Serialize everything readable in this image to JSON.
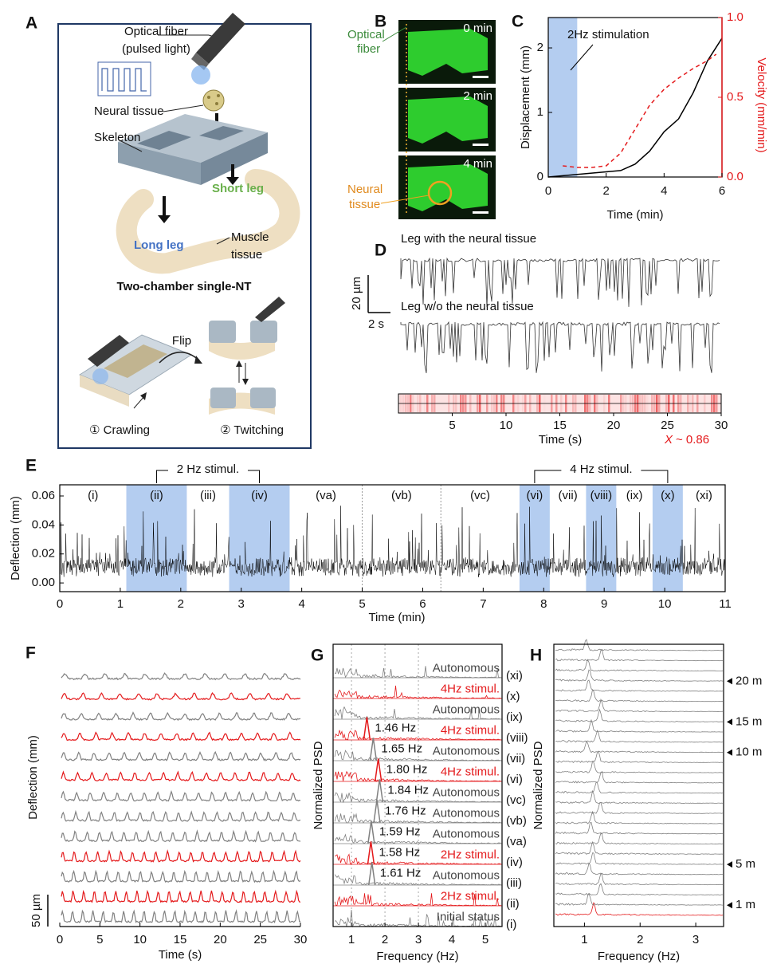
{
  "panel_a": {
    "label": "A",
    "optical_fiber": "Optical fiber",
    "pulsed_light": "(pulsed light)",
    "neural_tissue": "Neural tissue",
    "skeleton": "Skeleton",
    "short_leg": "Short leg",
    "long_leg": "Long leg",
    "muscle": "Muscle",
    "tissue": "tissue",
    "caption": "Two-chamber single-NT",
    "flip": "Flip",
    "crawling": "① Crawling",
    "twitching": "② Twitching"
  },
  "panel_b": {
    "label": "B",
    "times": [
      "0 min",
      "2 min",
      "4 min"
    ],
    "optical": "Optical",
    "fiber": "fiber",
    "neural": "Neural",
    "tissue": "tissue"
  },
  "chart_data": [
    {
      "type": "line",
      "panel": "C",
      "xlabel": "Time (min)",
      "ylabel": "Displacement (mm)",
      "y2label": "Velocity (mm/min)",
      "annotation": "2Hz stimulation",
      "xlim": [
        0,
        6
      ],
      "xticks": [
        0,
        2,
        4,
        6
      ],
      "ylim": [
        0,
        2.47
      ],
      "yticks": [
        0,
        1,
        2
      ],
      "y2lim": [
        0,
        1
      ],
      "y2ticks": [
        {
          "value": 0,
          "label": "0.0"
        },
        {
          "value": 0.5,
          "label": "0.5"
        },
        {
          "value": 1,
          "label": "1.0"
        }
      ],
      "stimulation": [
        0,
        1
      ],
      "stimulation_color": "#b4cdf0",
      "series": [
        {
          "color": "#000000",
          "x": [
            0,
            0.5,
            1,
            1.5,
            2,
            2.5,
            3,
            3.5,
            4,
            4.5,
            5,
            5.5,
            6
          ],
          "values": [
            0,
            0.02,
            0.04,
            0.06,
            0.08,
            0.1,
            0.2,
            0.4,
            0.7,
            0.9,
            1.3,
            1.8,
            2.15
          ]
        },
        {
          "color": "#e41a1c",
          "dashed": true,
          "axis": "y2",
          "x": [
            0.5,
            1,
            1.5,
            2,
            2.5,
            3,
            3.5,
            4,
            4.5,
            5,
            5.5,
            5.8
          ],
          "values": [
            0.07,
            0.06,
            0.06,
            0.07,
            0.15,
            0.3,
            0.45,
            0.55,
            0.62,
            0.68,
            0.73,
            0.77
          ]
        }
      ]
    },
    {
      "type": "line",
      "panel": "E",
      "xlabel": "Time (min)",
      "ylabel": "Deflection (mm)",
      "xlim": [
        0,
        11
      ],
      "xticks": [
        0,
        1,
        2,
        3,
        4,
        5,
        6,
        7,
        8,
        9,
        10,
        11
      ],
      "ylim": [
        -0.006,
        0.0677
      ],
      "yticks": [
        {
          "value": 0,
          "label": "0.00"
        },
        {
          "value": 0.02,
          "label": "0.02"
        },
        {
          "value": 0.04,
          "label": "0.04"
        },
        {
          "value": 0.06,
          "label": "0.06"
        }
      ],
      "stimulation_color": "#b4cdf0",
      "segments": [
        {
          "label": "(i)",
          "start": 0,
          "end": 1.1,
          "stimulated": false
        },
        {
          "label": "(ii)",
          "start": 1.1,
          "end": 2.1,
          "stimulated": true
        },
        {
          "label": "(iii)",
          "start": 2.1,
          "end": 2.8,
          "stimulated": false
        },
        {
          "label": "(iv)",
          "start": 2.8,
          "end": 3.8,
          "stimulated": true
        },
        {
          "label": "(va)",
          "start": 3.8,
          "end": 5,
          "stimulated": false
        },
        {
          "label": "(vb)",
          "start": 5,
          "end": 6.3,
          "stimulated": false
        },
        {
          "label": "(vc)",
          "start": 6.3,
          "end": 7.6,
          "stimulated": false
        },
        {
          "label": "(vi)",
          "start": 7.6,
          "end": 8.1,
          "stimulated": true
        },
        {
          "label": "(vii)",
          "start": 8.1,
          "end": 8.7,
          "stimulated": false
        },
        {
          "label": "(viii)",
          "start": 8.7,
          "end": 9.2,
          "stimulated": true
        },
        {
          "label": "(ix)",
          "start": 9.2,
          "end": 9.8,
          "stimulated": false
        },
        {
          "label": "(x)",
          "start": 9.8,
          "end": 10.3,
          "stimulated": true
        },
        {
          "label": "(xi)",
          "start": 10.3,
          "end": 11,
          "stimulated": false
        }
      ],
      "groups": [
        {
          "label": "2 Hz stimul.",
          "segments": [
            1,
            3
          ]
        },
        {
          "label": "4 Hz stimul.",
          "segments": [
            7,
            11
          ]
        }
      ]
    }
  ],
  "panel_d": {
    "label": "D",
    "leg_with": "Leg with the neural tissue",
    "leg_without": "Leg w/o the neural tissue",
    "scale_y": "20 µm",
    "scale_x": "2 s",
    "xlabel": "Time (s)",
    "xlim": [
      0,
      30
    ],
    "xticks": [
      5,
      10,
      15,
      20,
      25,
      30
    ],
    "correlation_symbol": "X",
    "correlation_value": "~ 0.86",
    "correlation_color": "#e41a1c"
  },
  "panel_f": {
    "label": "F",
    "ylabel": "Deflection (mm)",
    "xlabel": "Time (s)",
    "scale": "50 µm",
    "xlim": [
      0,
      30
    ],
    "xticks": [
      0,
      5,
      10,
      15,
      20,
      25,
      30
    ]
  },
  "panel_g": {
    "label": "G",
    "ylabel": "Normalized PSD",
    "xlabel": "Frequency (Hz)",
    "xlim": [
      0.45,
      5.5
    ],
    "xticks": [
      1,
      2,
      3,
      4,
      5
    ],
    "grid_lines": [
      1,
      2,
      3
    ],
    "rows": [
      {
        "roman": "(xi)",
        "status": "Autonomous",
        "color": "#808080"
      },
      {
        "roman": "(x)",
        "status": "4Hz stimul.",
        "color": "#e41a1c"
      },
      {
        "roman": "(ix)",
        "status": "Autonomous",
        "color": "#808080"
      },
      {
        "roman": "(viii)",
        "status": "4Hz stimul.",
        "color": "#e41a1c",
        "peak": 1.46,
        "peak_label": "1.46 Hz"
      },
      {
        "roman": "(vii)",
        "status": "Autonomous",
        "color": "#808080",
        "peak": 1.65,
        "peak_label": "1.65 Hz"
      },
      {
        "roman": "(vi)",
        "status": "4Hz stimul.",
        "color": "#e41a1c",
        "peak": 1.8,
        "peak_label": "1.80 Hz"
      },
      {
        "roman": "(vc)",
        "status": "Autonomous",
        "color": "#808080",
        "peak": 1.84,
        "peak_label": "1.84 Hz"
      },
      {
        "roman": "(vb)",
        "status": "Autonomous",
        "color": "#808080",
        "peak": 1.76,
        "peak_label": "1.76 Hz"
      },
      {
        "roman": "(va)",
        "status": "Autonomous",
        "color": "#808080",
        "peak": 1.59,
        "peak_label": "1.59 Hz"
      },
      {
        "roman": "(iv)",
        "status": "2Hz stimul.",
        "color": "#e41a1c",
        "peak": 1.58,
        "peak_label": "1.58 Hz"
      },
      {
        "roman": "(iii)",
        "status": "Autonomous",
        "color": "#808080",
        "peak": 1.61,
        "peak_label": "1.61 Hz"
      },
      {
        "roman": "(ii)",
        "status": "2Hz stimul.",
        "color": "#e41a1c"
      },
      {
        "roman": "(i)",
        "status": "Initial status",
        "color": "#808080"
      }
    ]
  },
  "panel_h": {
    "label": "H",
    "ylabel": "Normalized PSD",
    "xlabel": "Frequency (Hz)",
    "xlim": [
      0.45,
      3.5
    ],
    "xticks": [
      1,
      2,
      3
    ],
    "rows": 27,
    "first_row_color": "#e41a1c",
    "row_color": "#808080",
    "markers": [
      {
        "label": "1 m",
        "row": 1
      },
      {
        "label": "5 m",
        "row": 5
      },
      {
        "label": "10 m",
        "row": 16
      },
      {
        "label": "15 m",
        "row": 19
      },
      {
        "label": "20 m",
        "row": 23
      }
    ]
  }
}
